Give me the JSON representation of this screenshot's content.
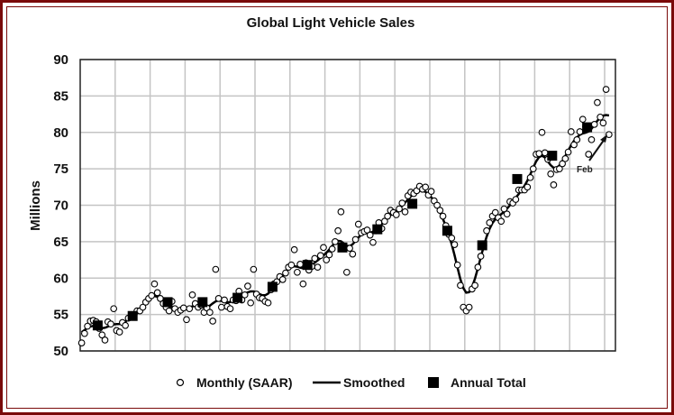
{
  "chart_data": {
    "type": "line",
    "title": "Global Light Vehicle Sales",
    "xlabel": "",
    "ylabel": "Millions",
    "ylim": [
      50,
      90
    ],
    "yticks": [
      50,
      55,
      60,
      65,
      70,
      75,
      80,
      85,
      90
    ],
    "grid": true,
    "legend_position": "bottom",
    "annotation": "Feb",
    "series": [
      {
        "name": "Monthly (SAAR)",
        "marker": "open-circle",
        "values": [
          51.1,
          52.4,
          53.4,
          54.1,
          54.2,
          54.0,
          53.1,
          52.2,
          51.5,
          54.0,
          53.7,
          55.8,
          52.8,
          52.6,
          53.9,
          53.5,
          54.5,
          54.8,
          55.0,
          55.5,
          55.5,
          56.0,
          56.7,
          57.2,
          57.6,
          59.2,
          58.0,
          57.2,
          56.5,
          56.0,
          55.5,
          56.8,
          55.8,
          55.3,
          55.6,
          55.9,
          54.3,
          55.8,
          57.7,
          56.5,
          56.0,
          56.3,
          55.3,
          55.9,
          55.3,
          54.1,
          61.2,
          57.2,
          56.0,
          57.0,
          56.1,
          55.8,
          57.0,
          56.9,
          58.2,
          57.0,
          57.7,
          58.9,
          56.6,
          61.2,
          57.8,
          57.3,
          57.2,
          56.8,
          56.6,
          58.4,
          59.2,
          59.5,
          60.2,
          59.8,
          60.7,
          61.5,
          61.8,
          63.9,
          60.8,
          61.9,
          59.2,
          62.1,
          61.1,
          61.6,
          62.7,
          61.5,
          63.1,
          64.2,
          62.5,
          63.2,
          64.0,
          65.0,
          66.5,
          69.1,
          64.1,
          60.8,
          64.1,
          63.3,
          65.3,
          67.4,
          66.2,
          66.4,
          66.6,
          65.9,
          64.9,
          66.5,
          67.6,
          66.8,
          67.8,
          68.5,
          69.3,
          69.0,
          68.7,
          69.5,
          70.3,
          69.1,
          71.3,
          71.8,
          71.6,
          72.0,
          72.6,
          72.2,
          72.5,
          71.4,
          71.9,
          70.6,
          70.0,
          69.3,
          68.5,
          67.2,
          66.0,
          65.5,
          64.6,
          61.8,
          59.0,
          56.0,
          55.5,
          56.0,
          58.5,
          59.0,
          61.5,
          63.0,
          64.5,
          66.5,
          67.6,
          68.5,
          69.0,
          68.3,
          67.8,
          69.5,
          68.8,
          70.5,
          70.3,
          70.8,
          72.1,
          72.1,
          72.1,
          72.5,
          73.8,
          75.0,
          77.0,
          77.1,
          80.0,
          77.2,
          76.3,
          74.3,
          72.8,
          74.9,
          75.0,
          75.7,
          76.4,
          77.3,
          80.1,
          78.3,
          79.0,
          80.1,
          81.8,
          80.8,
          77.0,
          79.0,
          81.1,
          84.1,
          82.1,
          81.3,
          85.9,
          79.7
        ]
      },
      {
        "name": "Smoothed",
        "marker": "line",
        "derived_from": "Monthly (SAAR)"
      },
      {
        "name": "Annual Total",
        "marker": "filled-square",
        "values": [
          53.5,
          54.8,
          56.7,
          56.7,
          57.3,
          58.8,
          61.8,
          64.2,
          66.7,
          70.2,
          66.5,
          64.5,
          73.6,
          76.8,
          80.7
        ]
      }
    ]
  },
  "colors": {
    "frame": "#7a0a0a",
    "grid": "#c4c4c4",
    "series": "#000000"
  }
}
